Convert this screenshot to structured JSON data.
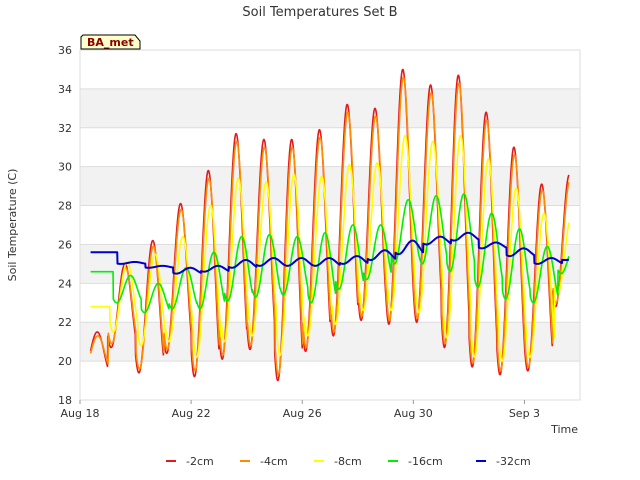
{
  "chart_data": {
    "type": "line",
    "title": "Soil Temperatures Set B",
    "xlabel": "Time",
    "ylabel": "Soil Temperature (C)",
    "site_label": "BA_met",
    "ylim": [
      18,
      36
    ],
    "yticks": [
      18,
      20,
      22,
      24,
      26,
      28,
      30,
      32,
      34,
      36
    ],
    "xlim_days": [
      0,
      18
    ],
    "x_start_date": "2023-08-18",
    "xticks": [
      {
        "day": 0,
        "label": "Aug 18"
      },
      {
        "day": 4,
        "label": "Aug 22"
      },
      {
        "day": 8,
        "label": "Aug 26"
      },
      {
        "day": 12,
        "label": "Aug 30"
      },
      {
        "day": 16,
        "label": "Sep 3"
      }
    ],
    "grid": "horizontal bands",
    "legend_position": "bottom",
    "daily_extremes": {
      "days": [
        "Aug 18",
        "Aug 19",
        "Aug 20",
        "Aug 21",
        "Aug 22",
        "Aug 23",
        "Aug 24",
        "Aug 25",
        "Aug 26",
        "Aug 27",
        "Aug 28",
        "Aug 29",
        "Aug 30",
        "Aug 31",
        "Sep 1",
        "Sep 2",
        "Sep 3",
        "Sep 4"
      ],
      "series": [
        {
          "name": "-2cm",
          "color": "#e31a1c",
          "min": [
            19.4,
            20.7,
            19.4,
            20.4,
            19.2,
            20.1,
            20.6,
            19.0,
            20.5,
            21.3,
            22.1,
            21.9,
            22.0,
            20.7,
            19.7,
            19.3,
            19.5,
            22.8
          ],
          "max": [
            21.5,
            25.0,
            26.2,
            28.1,
            29.8,
            31.7,
            31.4,
            31.4,
            31.9,
            33.2,
            33.0,
            35.0,
            34.2,
            34.7,
            32.8,
            31.0,
            29.1,
            29.6
          ]
        },
        {
          "name": "-4cm",
          "color": "#ff8c00",
          "min": [
            19.6,
            20.9,
            19.6,
            20.6,
            19.5,
            20.3,
            20.8,
            19.3,
            20.7,
            21.5,
            22.3,
            22.1,
            22.2,
            20.9,
            19.9,
            19.5,
            19.7,
            23.0
          ],
          "max": [
            21.3,
            24.8,
            25.9,
            27.8,
            29.4,
            31.3,
            31.0,
            31.0,
            31.5,
            32.8,
            32.6,
            34.6,
            33.8,
            34.3,
            32.4,
            30.6,
            28.8,
            29.3
          ]
        },
        {
          "name": "-8cm",
          "color": "#ffff00",
          "min": [
            22.8,
            21.5,
            20.8,
            21.0,
            20.2,
            21.0,
            21.3,
            20.3,
            21.3,
            21.9,
            22.6,
            22.6,
            22.5,
            21.2,
            20.2,
            20.0,
            20.2,
            23.5
          ],
          "max": [
            22.8,
            25.1,
            25.5,
            26.4,
            28.0,
            29.4,
            29.2,
            29.6,
            29.5,
            30.1,
            30.2,
            31.6,
            31.3,
            31.6,
            30.4,
            28.9,
            27.6,
            27.5
          ]
        },
        {
          "name": "-16cm",
          "color": "#00ee00",
          "min": [
            24.6,
            23.0,
            22.5,
            22.7,
            22.7,
            23.1,
            23.3,
            23.4,
            23.0,
            23.7,
            24.2,
            25.0,
            25.0,
            24.6,
            23.8,
            23.2,
            23.0,
            24.5
          ],
          "max": [
            24.6,
            24.4,
            24.0,
            24.8,
            25.6,
            26.4,
            26.5,
            26.4,
            26.6,
            27.0,
            27.0,
            28.3,
            28.5,
            28.6,
            27.6,
            26.8,
            25.9,
            26.0
          ]
        },
        {
          "name": "-32cm",
          "color": "#0000cc",
          "min": [
            25.6,
            25.0,
            24.8,
            24.5,
            24.6,
            24.8,
            24.9,
            24.9,
            24.9,
            25.0,
            25.2,
            25.5,
            26.0,
            26.2,
            25.8,
            25.4,
            25.0,
            25.2
          ],
          "max": [
            25.6,
            25.1,
            24.9,
            24.8,
            24.9,
            25.2,
            25.3,
            25.3,
            25.3,
            25.4,
            25.7,
            26.2,
            26.4,
            26.6,
            26.1,
            25.8,
            25.3,
            25.3
          ]
        }
      ]
    }
  }
}
